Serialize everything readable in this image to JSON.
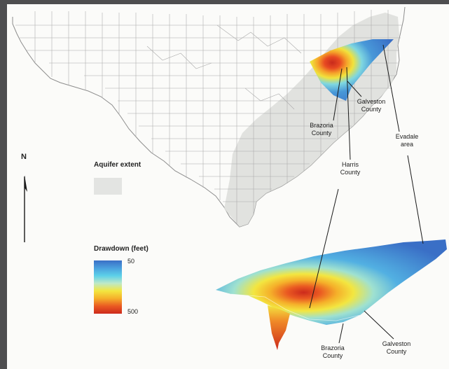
{
  "north_label": "N",
  "legend": {
    "aquifer_title": "Aquifer extent",
    "drawdown_title": "Drawdown (feet)",
    "drawdown_min": "50",
    "drawdown_max": "500",
    "aquifer_color": "#e3e4e2",
    "ramp_colors": [
      "#3a6fc6",
      "#4aa0de",
      "#5cd0e8",
      "#bde9c8",
      "#f3e640",
      "#f5b02a",
      "#ea5a22",
      "#cc2a1c"
    ]
  },
  "labels": {
    "galveston_upper": "Galveston\nCounty",
    "brazoria_upper": "Brazoria\nCounty",
    "harris": "Harris\nCounty",
    "evadale": "Evadale\narea",
    "brazoria_lower": "Brazoria\nCounty",
    "galveston_lower": "Galveston\nCounty"
  }
}
